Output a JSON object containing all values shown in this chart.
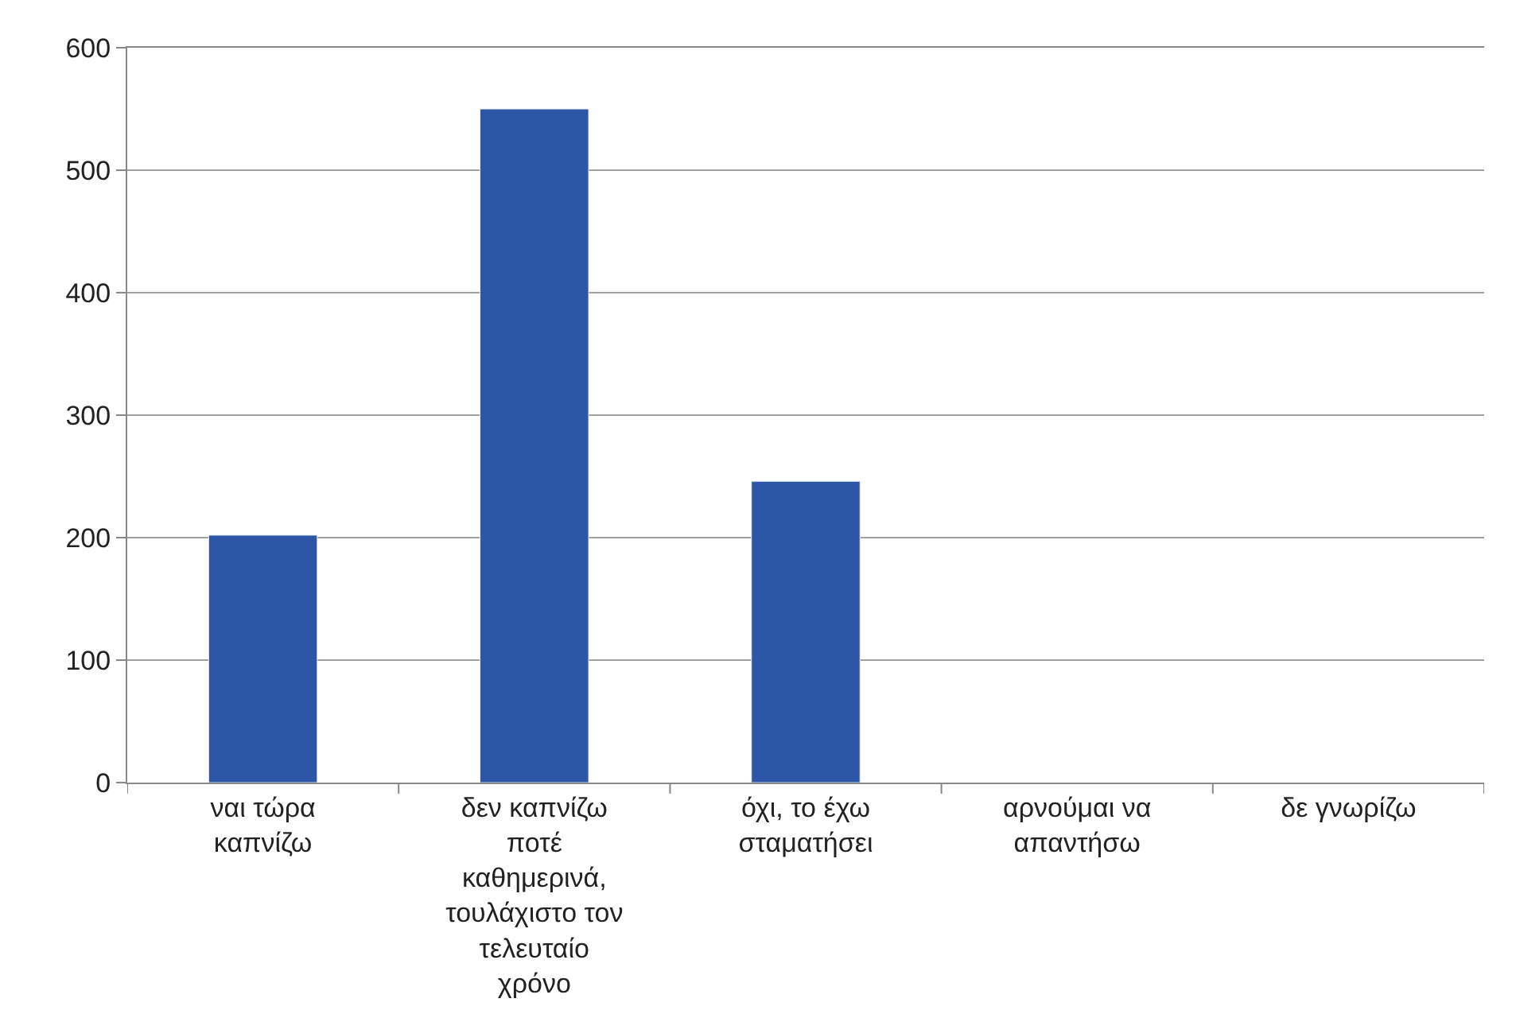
{
  "chart_data": {
    "type": "bar",
    "categories": [
      "ναι τώρα καπνίζω",
      "δεν καπνίζω ποτέ καθημερινά, τουλάχιστο τον τελευταίο χρόνο",
      "όχι, το έχω σταματήσει",
      "αρνούμαι να απαντήσω",
      "δε γνωρίζω"
    ],
    "values": [
      202,
      550,
      246,
      null,
      null
    ],
    "color": "#2e56a6",
    "ylim": [
      0,
      600
    ],
    "yticks": [
      0,
      100,
      200,
      300,
      400,
      500,
      600
    ],
    "grid": "y"
  }
}
